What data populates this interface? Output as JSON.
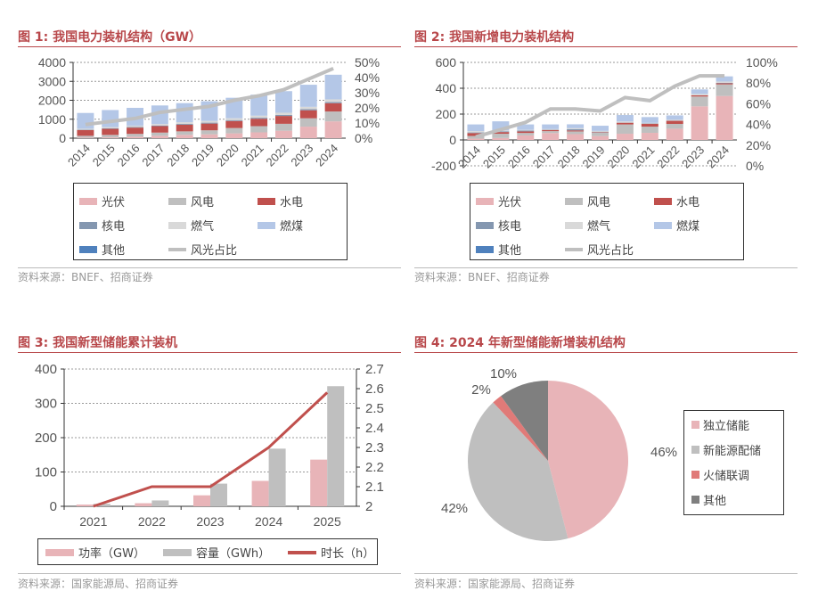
{
  "colors": {
    "solar": "#e8b4b8",
    "wind": "#bfbfbf",
    "hydro": "#c0504d",
    "nuclear": "#8497b0",
    "gas": "#d9d9d9",
    "coal": "#b4c7e7",
    "other": "#4f81bd",
    "ratio_line": "#bfbfbf",
    "title": "#b8474a"
  },
  "chart_data": [
    {
      "id": "fig1",
      "type": "bar",
      "stacked": true,
      "title": "图 1: 我国电力装机结构（GW）",
      "source": "资料来源：BNEF、招商证券",
      "categories": [
        "2014",
        "2015",
        "2016",
        "2017",
        "2018",
        "2019",
        "2020",
        "2021",
        "2022",
        "2023",
        "2024"
      ],
      "ylim": [
        0,
        4000
      ],
      "yticks": [
        "0",
        "1000",
        "2000",
        "3000",
        "4000"
      ],
      "y2lim": [
        0,
        50
      ],
      "y2ticks": [
        "0%",
        "10%",
        "20%",
        "30%",
        "40%",
        "50%"
      ],
      "grid": true,
      "legend": "bottom",
      "series": [
        {
          "name": "光伏",
          "key": "solar",
          "values": [
            28,
            42,
            77,
            130,
            175,
            204,
            253,
            306,
            393,
            609,
            887
          ]
        },
        {
          "name": "风电",
          "key": "wind",
          "values": [
            96,
            130,
            148,
            164,
            184,
            210,
            282,
            328,
            365,
            441,
            521
          ]
        },
        {
          "name": "水电",
          "key": "hydro",
          "values": [
            300,
            320,
            332,
            341,
            352,
            356,
            370,
            391,
            414,
            422,
            436
          ]
        },
        {
          "name": "核电",
          "key": "nuclear",
          "values": [
            20,
            27,
            34,
            36,
            45,
            49,
            50,
            53,
            56,
            57,
            61
          ]
        },
        {
          "name": "燃气",
          "key": "gas",
          "values": [
            56,
            66,
            70,
            76,
            83,
            90,
            98,
            109,
            115,
            126,
            144
          ]
        },
        {
          "name": "燃煤",
          "key": "coal",
          "values": [
            830,
            900,
            940,
            980,
            1010,
            1040,
            1080,
            1110,
            1140,
            1165,
            1300
          ]
        },
        {
          "name": "其他",
          "key": "other",
          "values": [
            0,
            0,
            0,
            0,
            0,
            0,
            0,
            0,
            0,
            0,
            0
          ]
        }
      ],
      "line": {
        "name": "风光占比",
        "key": "ratio_line",
        "values": [
          9,
          11,
          13,
          17,
          19,
          21,
          25,
          28,
          32,
          39,
          46
        ]
      }
    },
    {
      "id": "fig2",
      "type": "bar",
      "stacked": true,
      "title": "图 2: 我国新增电力装机结构",
      "source": "资料来源：BNEF、招商证券",
      "categories": [
        "2014",
        "2015",
        "2016",
        "2017",
        "2018",
        "2019",
        "2020",
        "2021",
        "2022",
        "2023",
        "2024"
      ],
      "ylim": [
        -200,
        600
      ],
      "yticks": [
        "-200",
        "0",
        "200",
        "400",
        "600"
      ],
      "y2lim": [
        0,
        100
      ],
      "y2ticks": [
        "0%",
        "20%",
        "40%",
        "60%",
        "80%",
        "100%"
      ],
      "grid": true,
      "legend": "bottom",
      "series": [
        {
          "name": "光伏",
          "key": "solar",
          "values": [
            10,
            15,
            35,
            53,
            45,
            30,
            48,
            55,
            87,
            260,
            340
          ]
        },
        {
          "name": "风电",
          "key": "wind",
          "values": [
            21,
            33,
            19,
            15,
            21,
            26,
            72,
            48,
            37,
            76,
            90
          ]
        },
        {
          "name": "水电",
          "key": "hydro",
          "values": [
            22,
            13,
            12,
            9,
            8,
            4,
            13,
            21,
            24,
            9,
            8
          ]
        },
        {
          "name": "核电",
          "key": "nuclear",
          "values": [
            5,
            6,
            7,
            2,
            9,
            4,
            1,
            3,
            2,
            1,
            4
          ]
        },
        {
          "name": "燃气",
          "key": "gas",
          "values": [
            10,
            7,
            5,
            5,
            8,
            6,
            9,
            5,
            6,
            10,
            10
          ]
        },
        {
          "name": "燃煤",
          "key": "coal",
          "values": [
            52,
            70,
            42,
            36,
            30,
            40,
            50,
            45,
            34,
            35,
            40
          ]
        },
        {
          "name": "其他",
          "key": "other",
          "values": [
            0,
            0,
            0,
            0,
            0,
            0,
            0,
            0,
            0,
            0,
            0
          ]
        }
      ],
      "line": {
        "name": "风光占比",
        "key": "ratio_line",
        "values": [
          28,
          35,
          42,
          55,
          55,
          53,
          66,
          63,
          77,
          87,
          87
        ]
      }
    },
    {
      "id": "fig3",
      "type": "bar",
      "title": "图 3: 我国新型储能累计装机",
      "source": "资料来源：国家能源局、招商证券",
      "categories": [
        "2021",
        "2022",
        "2023",
        "2024",
        "2025"
      ],
      "ylim": [
        0,
        400
      ],
      "yticks": [
        "0",
        "100",
        "200",
        "300",
        "400"
      ],
      "y2lim": [
        2,
        2.7
      ],
      "y2ticks": [
        "2",
        "2.1",
        "2.2",
        "2.3",
        "2.4",
        "2.5",
        "2.6",
        "2.7"
      ],
      "grid": true,
      "legend": "bottom",
      "series": [
        {
          "name": "功率（GW）",
          "color": "#e8b4b8",
          "values": [
            5,
            9,
            32,
            74,
            136
          ]
        },
        {
          "name": "容量（GWh）",
          "color": "#bfbfbf",
          "values": [
            7,
            17,
            66,
            168,
            350
          ]
        }
      ],
      "line": {
        "name": "时长（h）",
        "color": "#c0504d",
        "values": [
          2.0,
          2.1,
          2.1,
          2.3,
          2.58
        ]
      }
    },
    {
      "id": "fig4",
      "type": "pie",
      "title": "图 4: 2024 年新型储能新增装机结构",
      "source": "资料来源：国家能源局、招商证券",
      "legend": "right",
      "slices": [
        {
          "name": "独立储能",
          "value": 46,
          "label": "46%",
          "color": "#e8b4b8"
        },
        {
          "name": "新能源配储",
          "value": 42,
          "label": "42%",
          "color": "#bfbfbf"
        },
        {
          "name": "火储联调",
          "value": 2,
          "label": "2%",
          "color": "#e07a78"
        },
        {
          "name": "其他",
          "value": 10,
          "label": "10%",
          "color": "#7f7f7f"
        }
      ]
    }
  ]
}
